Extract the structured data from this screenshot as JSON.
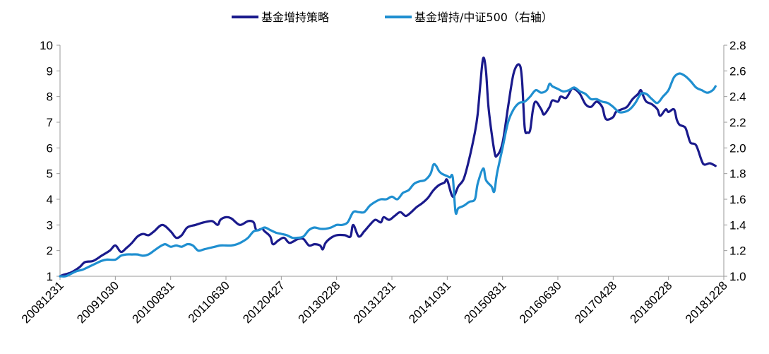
{
  "chart_data": {
    "type": "line",
    "title": "",
    "legend": {
      "position": "top-center"
    },
    "x_ticks": [
      "20081231",
      "20091030",
      "20100831",
      "20110630",
      "20120427",
      "20130228",
      "20131231",
      "20141031",
      "20150831",
      "20160630",
      "20170428",
      "20180228",
      "20181228"
    ],
    "y_left": {
      "min": 1,
      "max": 10,
      "ticks": [
        "1",
        "2",
        "3",
        "4",
        "5",
        "6",
        "7",
        "8",
        "9",
        "10"
      ]
    },
    "y_right": {
      "min": 1.0,
      "max": 2.8,
      "ticks": [
        "1.0",
        "1.2",
        "1.4",
        "1.6",
        "1.8",
        "2.0",
        "2.2",
        "2.4",
        "2.6",
        "2.8"
      ]
    },
    "series": [
      {
        "name": "基金增持策略",
        "axis": "left",
        "color": "#1a1a8c",
        "points": [
          [
            0.0,
            1.0
          ],
          [
            0.05,
            1.05
          ],
          [
            0.2,
            1.15
          ],
          [
            0.35,
            1.35
          ],
          [
            0.45,
            1.55
          ],
          [
            0.6,
            1.6
          ],
          [
            0.75,
            1.8
          ],
          [
            0.9,
            2.0
          ],
          [
            1.0,
            2.2
          ],
          [
            1.1,
            1.95
          ],
          [
            1.2,
            2.1
          ],
          [
            1.3,
            2.3
          ],
          [
            1.4,
            2.55
          ],
          [
            1.5,
            2.65
          ],
          [
            1.6,
            2.6
          ],
          [
            1.7,
            2.75
          ],
          [
            1.85,
            3.0
          ],
          [
            2.0,
            2.75
          ],
          [
            2.1,
            2.5
          ],
          [
            2.2,
            2.6
          ],
          [
            2.3,
            2.9
          ],
          [
            2.45,
            3.0
          ],
          [
            2.6,
            3.1
          ],
          [
            2.75,
            3.15
          ],
          [
            2.85,
            3.0
          ],
          [
            2.9,
            3.2
          ],
          [
            3.0,
            3.3
          ],
          [
            3.1,
            3.25
          ],
          [
            3.25,
            3.0
          ],
          [
            3.4,
            3.15
          ],
          [
            3.5,
            3.1
          ],
          [
            3.55,
            2.8
          ],
          [
            3.65,
            2.85
          ],
          [
            3.7,
            2.75
          ],
          [
            3.8,
            2.55
          ],
          [
            3.85,
            2.25
          ],
          [
            3.95,
            2.4
          ],
          [
            4.05,
            2.5
          ],
          [
            4.15,
            2.3
          ],
          [
            4.3,
            2.45
          ],
          [
            4.4,
            2.45
          ],
          [
            4.5,
            2.2
          ],
          [
            4.6,
            2.25
          ],
          [
            4.7,
            2.2
          ],
          [
            4.75,
            2.05
          ],
          [
            4.8,
            2.3
          ],
          [
            4.9,
            2.5
          ],
          [
            5.0,
            2.6
          ],
          [
            5.15,
            2.6
          ],
          [
            5.25,
            2.55
          ],
          [
            5.3,
            3.0
          ],
          [
            5.4,
            2.55
          ],
          [
            5.5,
            2.75
          ],
          [
            5.6,
            3.0
          ],
          [
            5.7,
            3.2
          ],
          [
            5.8,
            3.1
          ],
          [
            5.85,
            3.3
          ],
          [
            5.95,
            3.2
          ],
          [
            6.05,
            3.35
          ],
          [
            6.15,
            3.5
          ],
          [
            6.25,
            3.35
          ],
          [
            6.35,
            3.5
          ],
          [
            6.45,
            3.7
          ],
          [
            6.55,
            3.85
          ],
          [
            6.65,
            4.05
          ],
          [
            6.75,
            4.35
          ],
          [
            6.85,
            4.55
          ],
          [
            6.95,
            4.65
          ],
          [
            7.0,
            4.75
          ],
          [
            7.1,
            4.1
          ],
          [
            7.2,
            4.5
          ],
          [
            7.3,
            4.8
          ],
          [
            7.4,
            5.6
          ],
          [
            7.5,
            6.6
          ],
          [
            7.55,
            7.3
          ],
          [
            7.6,
            8.5
          ],
          [
            7.65,
            9.5
          ],
          [
            7.7,
            9.0
          ],
          [
            7.75,
            7.5
          ],
          [
            7.85,
            5.9
          ],
          [
            7.9,
            5.7
          ],
          [
            8.0,
            6.2
          ],
          [
            8.1,
            7.6
          ],
          [
            8.2,
            8.9
          ],
          [
            8.3,
            9.25
          ],
          [
            8.35,
            8.7
          ],
          [
            8.4,
            6.8
          ],
          [
            8.45,
            6.6
          ],
          [
            8.5,
            6.7
          ],
          [
            8.55,
            7.5
          ],
          [
            8.6,
            7.8
          ],
          [
            8.7,
            7.5
          ],
          [
            8.75,
            7.3
          ],
          [
            8.85,
            7.6
          ],
          [
            8.9,
            7.85
          ],
          [
            9.0,
            7.8
          ],
          [
            9.05,
            8.0
          ],
          [
            9.15,
            7.95
          ],
          [
            9.25,
            8.3
          ],
          [
            9.3,
            8.3
          ],
          [
            9.4,
            8.1
          ],
          [
            9.5,
            7.7
          ],
          [
            9.6,
            7.6
          ],
          [
            9.7,
            7.8
          ],
          [
            9.8,
            7.6
          ],
          [
            9.85,
            7.2
          ],
          [
            9.9,
            7.1
          ],
          [
            10.0,
            7.2
          ],
          [
            10.05,
            7.4
          ],
          [
            10.15,
            7.5
          ],
          [
            10.25,
            7.6
          ],
          [
            10.35,
            7.9
          ],
          [
            10.45,
            8.1
          ],
          [
            10.5,
            8.25
          ],
          [
            10.55,
            8.0
          ],
          [
            10.6,
            7.8
          ],
          [
            10.7,
            7.7
          ],
          [
            10.8,
            7.5
          ],
          [
            10.85,
            7.25
          ],
          [
            10.95,
            7.5
          ],
          [
            11.0,
            7.4
          ],
          [
            11.1,
            7.5
          ],
          [
            11.15,
            7.1
          ],
          [
            11.2,
            6.9
          ],
          [
            11.3,
            6.8
          ],
          [
            11.35,
            6.5
          ],
          [
            11.4,
            6.2
          ],
          [
            11.5,
            6.1
          ],
          [
            11.6,
            5.5
          ],
          [
            11.65,
            5.35
          ],
          [
            11.75,
            5.4
          ],
          [
            11.85,
            5.3
          ]
        ]
      },
      {
        "name": "基金增持/中证500（右轴）",
        "axis": "right",
        "color": "#1f8fd0",
        "points": [
          [
            0.0,
            1.0
          ],
          [
            0.1,
            1.0
          ],
          [
            0.2,
            1.02
          ],
          [
            0.3,
            1.04
          ],
          [
            0.4,
            1.05
          ],
          [
            0.55,
            1.08
          ],
          [
            0.65,
            1.1
          ],
          [
            0.75,
            1.12
          ],
          [
            0.85,
            1.13
          ],
          [
            1.0,
            1.13
          ],
          [
            1.1,
            1.16
          ],
          [
            1.2,
            1.17
          ],
          [
            1.3,
            1.17
          ],
          [
            1.4,
            1.17
          ],
          [
            1.5,
            1.16
          ],
          [
            1.6,
            1.17
          ],
          [
            1.7,
            1.2
          ],
          [
            1.8,
            1.23
          ],
          [
            1.9,
            1.25
          ],
          [
            2.0,
            1.23
          ],
          [
            2.1,
            1.24
          ],
          [
            2.2,
            1.23
          ],
          [
            2.3,
            1.25
          ],
          [
            2.4,
            1.24
          ],
          [
            2.5,
            1.2
          ],
          [
            2.6,
            1.21
          ],
          [
            2.7,
            1.22
          ],
          [
            2.8,
            1.23
          ],
          [
            2.9,
            1.24
          ],
          [
            3.0,
            1.24
          ],
          [
            3.1,
            1.24
          ],
          [
            3.2,
            1.25
          ],
          [
            3.3,
            1.27
          ],
          [
            3.4,
            1.3
          ],
          [
            3.5,
            1.35
          ],
          [
            3.6,
            1.36
          ],
          [
            3.7,
            1.38
          ],
          [
            3.8,
            1.36
          ],
          [
            3.9,
            1.34
          ],
          [
            4.0,
            1.33
          ],
          [
            4.1,
            1.32
          ],
          [
            4.2,
            1.3
          ],
          [
            4.3,
            1.3
          ],
          [
            4.4,
            1.31
          ],
          [
            4.5,
            1.36
          ],
          [
            4.6,
            1.38
          ],
          [
            4.7,
            1.37
          ],
          [
            4.8,
            1.37
          ],
          [
            4.9,
            1.38
          ],
          [
            5.0,
            1.4
          ],
          [
            5.1,
            1.4
          ],
          [
            5.2,
            1.42
          ],
          [
            5.3,
            1.5
          ],
          [
            5.4,
            1.5
          ],
          [
            5.5,
            1.5
          ],
          [
            5.6,
            1.55
          ],
          [
            5.7,
            1.58
          ],
          [
            5.8,
            1.6
          ],
          [
            5.9,
            1.6
          ],
          [
            6.0,
            1.62
          ],
          [
            6.1,
            1.6
          ],
          [
            6.2,
            1.65
          ],
          [
            6.3,
            1.67
          ],
          [
            6.4,
            1.72
          ],
          [
            6.5,
            1.74
          ],
          [
            6.6,
            1.75
          ],
          [
            6.7,
            1.8
          ],
          [
            6.75,
            1.87
          ],
          [
            6.8,
            1.86
          ],
          [
            6.85,
            1.82
          ],
          [
            6.9,
            1.8
          ],
          [
            7.0,
            1.78
          ],
          [
            7.05,
            1.77
          ],
          [
            7.1,
            1.77
          ],
          [
            7.15,
            1.5
          ],
          [
            7.2,
            1.53
          ],
          [
            7.3,
            1.55
          ],
          [
            7.4,
            1.58
          ],
          [
            7.5,
            1.6
          ],
          [
            7.55,
            1.72
          ],
          [
            7.65,
            1.84
          ],
          [
            7.7,
            1.75
          ],
          [
            7.8,
            1.7
          ],
          [
            7.85,
            1.66
          ],
          [
            7.9,
            1.8
          ],
          [
            8.0,
            2.0
          ],
          [
            8.1,
            2.2
          ],
          [
            8.2,
            2.3
          ],
          [
            8.3,
            2.35
          ],
          [
            8.4,
            2.36
          ],
          [
            8.5,
            2.4
          ],
          [
            8.6,
            2.45
          ],
          [
            8.7,
            2.43
          ],
          [
            8.8,
            2.45
          ],
          [
            8.85,
            2.5
          ],
          [
            8.9,
            2.48
          ],
          [
            9.0,
            2.46
          ],
          [
            9.1,
            2.44
          ],
          [
            9.2,
            2.45
          ],
          [
            9.3,
            2.47
          ],
          [
            9.4,
            2.44
          ],
          [
            9.5,
            2.42
          ],
          [
            9.6,
            2.38
          ],
          [
            9.7,
            2.38
          ],
          [
            9.8,
            2.36
          ],
          [
            9.9,
            2.35
          ],
          [
            10.0,
            2.32
          ],
          [
            10.1,
            2.28
          ],
          [
            10.2,
            2.28
          ],
          [
            10.3,
            2.3
          ],
          [
            10.4,
            2.35
          ],
          [
            10.5,
            2.42
          ],
          [
            10.6,
            2.42
          ],
          [
            10.7,
            2.38
          ],
          [
            10.8,
            2.35
          ],
          [
            10.9,
            2.4
          ],
          [
            11.0,
            2.45
          ],
          [
            11.1,
            2.55
          ],
          [
            11.2,
            2.58
          ],
          [
            11.3,
            2.56
          ],
          [
            11.4,
            2.52
          ],
          [
            11.5,
            2.47
          ],
          [
            11.6,
            2.45
          ],
          [
            11.7,
            2.43
          ],
          [
            11.8,
            2.45
          ],
          [
            11.85,
            2.48
          ]
        ]
      }
    ]
  }
}
